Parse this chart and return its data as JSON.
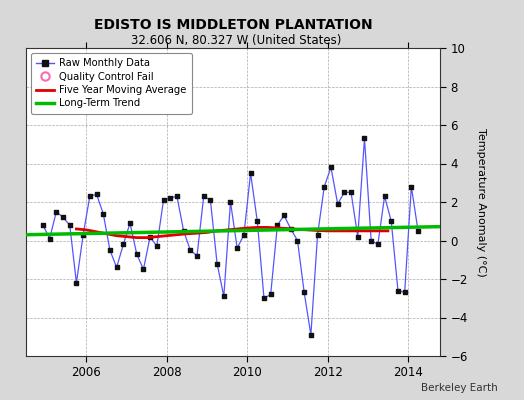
{
  "title": "EDISTO IS MIDDLETON PLANTATION",
  "subtitle": "32.606 N, 80.327 W (United States)",
  "ylabel": "Temperature Anomaly (°C)",
  "credit": "Berkeley Earth",
  "ylim": [
    -6,
    10
  ],
  "yticks": [
    -6,
    -4,
    -2,
    0,
    2,
    4,
    6,
    8,
    10
  ],
  "xlim_start": 2004.5,
  "xlim_end": 2014.8,
  "xticks": [
    2006,
    2008,
    2010,
    2012,
    2014
  ],
  "bg_color": "#d8d8d8",
  "plot_bg_color": "#ffffff",
  "raw_color": "#5555ff",
  "raw_marker_color": "#111111",
  "ma_color": "#dd0000",
  "trend_color": "#00bb00",
  "qc_fail_color": "#ff69b4",
  "legend_items": [
    "Raw Monthly Data",
    "Quality Control Fail",
    "Five Year Moving Average",
    "Long-Term Trend"
  ],
  "raw_data_x": [
    2004.917,
    2005.083,
    2005.25,
    2005.417,
    2005.583,
    2005.75,
    2005.917,
    2006.083,
    2006.25,
    2006.417,
    2006.583,
    2006.75,
    2006.917,
    2007.083,
    2007.25,
    2007.417,
    2007.583,
    2007.75,
    2007.917,
    2008.083,
    2008.25,
    2008.417,
    2008.583,
    2008.75,
    2008.917,
    2009.083,
    2009.25,
    2009.417,
    2009.583,
    2009.75,
    2009.917,
    2010.083,
    2010.25,
    2010.417,
    2010.583,
    2010.75,
    2010.917,
    2011.083,
    2011.25,
    2011.417,
    2011.583,
    2011.75,
    2011.917,
    2012.083,
    2012.25,
    2012.417,
    2012.583,
    2012.75,
    2012.917,
    2013.083,
    2013.25,
    2013.417,
    2013.583,
    2013.75,
    2013.917,
    2014.083,
    2014.25
  ],
  "raw_data_y": [
    0.8,
    0.1,
    1.5,
    1.2,
    0.8,
    -2.2,
    0.3,
    2.3,
    2.4,
    1.4,
    -0.5,
    -1.4,
    -0.2,
    0.9,
    -0.7,
    -1.5,
    0.2,
    -0.3,
    2.1,
    2.2,
    2.3,
    0.5,
    -0.5,
    -0.8,
    2.3,
    2.1,
    -1.2,
    -2.9,
    2.0,
    -0.4,
    0.3,
    3.5,
    1.0,
    -3.0,
    -2.8,
    0.8,
    1.3,
    0.6,
    0.0,
    -2.7,
    -4.9,
    0.3,
    2.8,
    3.8,
    1.9,
    2.5,
    2.5,
    0.2,
    5.3,
    0.0,
    -0.2,
    2.3,
    1.0,
    -2.6,
    -2.7,
    2.8,
    0.5
  ],
  "ma_data_x": [
    2005.75,
    2006.0,
    2006.25,
    2006.5,
    2006.75,
    2007.0,
    2007.25,
    2007.5,
    2007.75,
    2008.0,
    2008.25,
    2008.5,
    2008.75,
    2009.0,
    2009.25,
    2009.5,
    2009.75,
    2010.0,
    2010.25,
    2010.5,
    2010.75,
    2011.0,
    2011.25,
    2011.5,
    2011.75,
    2012.0,
    2012.25,
    2012.5,
    2012.75,
    2013.0,
    2013.25,
    2013.5
  ],
  "ma_data_y": [
    0.6,
    0.55,
    0.45,
    0.35,
    0.25,
    0.2,
    0.15,
    0.15,
    0.2,
    0.25,
    0.3,
    0.35,
    0.38,
    0.42,
    0.5,
    0.55,
    0.6,
    0.65,
    0.68,
    0.68,
    0.65,
    0.62,
    0.58,
    0.55,
    0.52,
    0.5,
    0.5,
    0.5,
    0.5,
    0.5,
    0.5,
    0.5
  ],
  "trend_x": [
    2004.5,
    2014.8
  ],
  "trend_y": [
    0.3,
    0.72
  ]
}
